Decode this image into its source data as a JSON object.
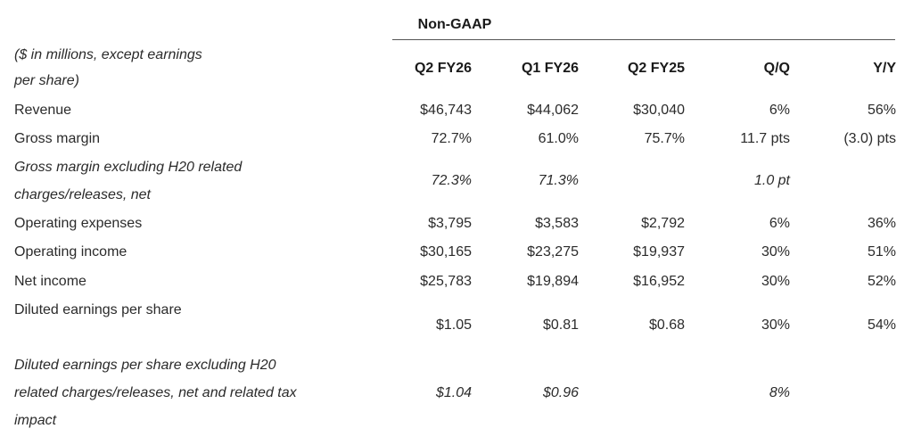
{
  "group_title": "Non-GAAP",
  "columns": {
    "label": [
      "($ in millions, except earnings",
      "per share)"
    ],
    "q2fy26": "Q2 FY26",
    "q1fy26": "Q1 FY26",
    "q2fy25": "Q2 FY25",
    "qq": "Q/Q",
    "yy": "Y/Y"
  },
  "rows": [
    {
      "label": [
        "Revenue"
      ],
      "italic": false,
      "q2fy26": "$46,743",
      "q1fy26": "$44,062",
      "q2fy25": "$30,040",
      "qq": "6%",
      "yy": "56%"
    },
    {
      "label": [
        "Gross margin"
      ],
      "italic": false,
      "q2fy26": "72.7%",
      "q1fy26": "61.0%",
      "q2fy25": "75.7%",
      "qq": "11.7 pts",
      "yy": "(3.0) pts"
    },
    {
      "label": [
        "Gross margin excluding H20 related",
        "charges/releases, net"
      ],
      "italic": true,
      "q2fy26": "72.3%",
      "q1fy26": "71.3%",
      "q2fy25": "",
      "qq": "1.0 pt",
      "yy": ""
    },
    {
      "label": [
        "Operating expenses"
      ],
      "italic": false,
      "q2fy26": "$3,795",
      "q1fy26": "$3,583",
      "q2fy25": "$2,792",
      "qq": "6%",
      "yy": "36%"
    },
    {
      "label": [
        "Operating income"
      ],
      "italic": false,
      "q2fy26": "$30,165",
      "q1fy26": "$23,275",
      "q2fy25": "$19,937",
      "qq": "30%",
      "yy": "51%"
    },
    {
      "label": [
        "Net income"
      ],
      "italic": false,
      "q2fy26": "$25,783",
      "q1fy26": "$19,894",
      "q2fy25": "$16,952",
      "qq": "30%",
      "yy": "52%"
    },
    {
      "label": [
        "Diluted earnings per share"
      ],
      "italic": false,
      "q2fy26": "$1.05",
      "q1fy26": "$0.81",
      "q2fy25": "$0.68",
      "qq": "30%",
      "yy": "54%"
    },
    {
      "label": [
        "Diluted earnings per share excluding H20",
        "related charges/releases, net and related tax",
        "impact"
      ],
      "italic": true,
      "q2fy26": "$1.04",
      "q1fy26": "$0.96",
      "q2fy25": "",
      "qq": "8%",
      "yy": ""
    }
  ]
}
